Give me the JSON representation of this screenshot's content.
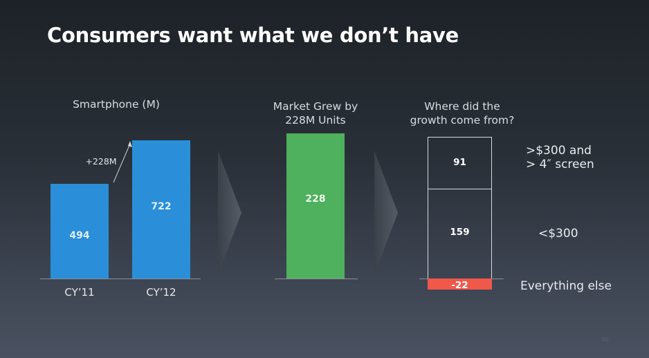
{
  "slide": {
    "title": "Consumers want what we don’t have",
    "page_number": "86"
  },
  "colors": {
    "blue_bar": "#2a8fd8",
    "green_bar": "#4fb05e",
    "red_bar": "#f0584a",
    "box_border": "#d7dbe1"
  },
  "chart_data": [
    {
      "type": "bar",
      "title": "Smartphone (M)",
      "categories": [
        "CY’11",
        "CY’12"
      ],
      "values": [
        494,
        722
      ],
      "value_labels": [
        "494",
        "722"
      ],
      "annotation": "+228M",
      "ylim": [
        0,
        800
      ]
    },
    {
      "type": "bar",
      "title": "Market Grew by\n228M Units",
      "categories": [
        ""
      ],
      "values": [
        228
      ],
      "value_labels": [
        "228"
      ],
      "ylim": [
        0,
        250
      ]
    },
    {
      "type": "bar",
      "title": "Where did the\ngrowth come from?",
      "categories": [
        ">$300 and\n> 4″ screen",
        "<$300",
        "Everything else"
      ],
      "values": [
        91,
        159,
        -22
      ],
      "value_labels": [
        "91",
        "159",
        "-22"
      ],
      "stacked": true
    }
  ]
}
